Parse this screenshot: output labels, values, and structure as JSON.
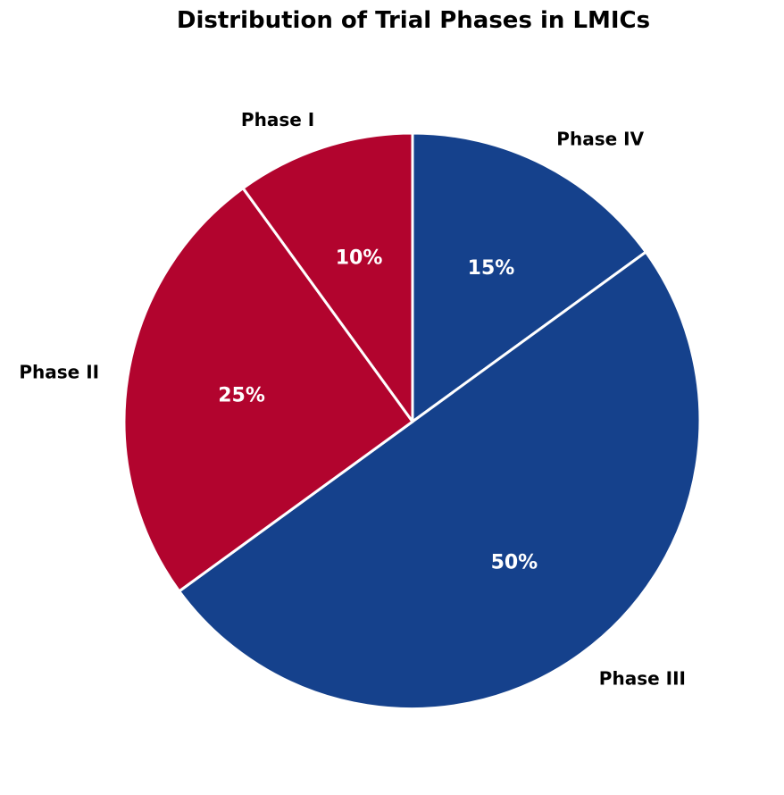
{
  "title": "Distribution of Trial Phases in LMICs",
  "colors": {
    "background": "#ffffff",
    "slice_border": "#ffffff",
    "blue": "#15418C",
    "red": "#B2042E",
    "outer_label_text": "#000000",
    "pct_text": "#ffffff"
  },
  "chart_data": {
    "type": "pie",
    "title": "Distribution of Trial Phases in LMICs",
    "labels": [
      "Phase IV",
      "Phase III",
      "Phase II",
      "Phase I"
    ],
    "values": [
      15,
      50,
      25,
      10
    ],
    "pct_labels": [
      "15%",
      "50%",
      "25%",
      "10%"
    ],
    "slice_colors": [
      "#15418C",
      "#15418C",
      "#B2042E",
      "#B2042E"
    ],
    "start_angle_deg": 90,
    "direction": "clockwise",
    "label_distance": 1.1,
    "pct_distance": 0.6,
    "legend": "none",
    "grid": "off"
  }
}
